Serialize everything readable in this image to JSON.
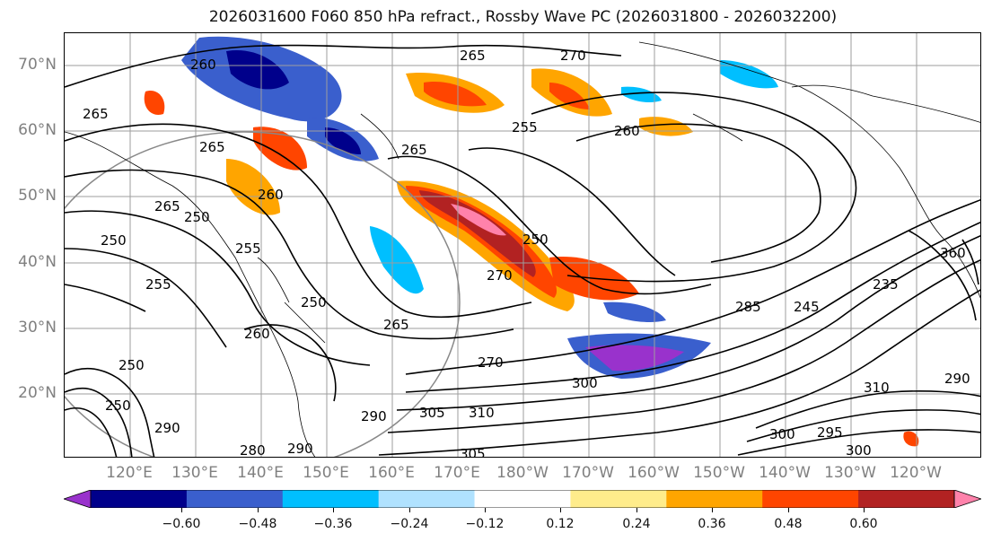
{
  "title": "2026031600 F060 850 hPa refract., Rossby Wave PC (2026031800 - 2026032200)",
  "lat_labels": [
    "70°N",
    "60°N",
    "50°N",
    "40°N",
    "30°N",
    "20°N"
  ],
  "lon_labels": [
    "120°E",
    "130°E",
    "140°E",
    "150°E",
    "160°E",
    "170°E",
    "180°W",
    "170°W",
    "160°W",
    "150°W",
    "140°W",
    "130°W",
    "120°W"
  ],
  "contour_labels": [
    "270",
    "260",
    "265",
    "265",
    "255",
    "260",
    "265",
    "265",
    "265",
    "250",
    "255",
    "260",
    "250",
    "250",
    "255",
    "250",
    "270",
    "265",
    "285",
    "270",
    "245",
    "235",
    "260",
    "290",
    "305",
    "310",
    "290",
    "300",
    "305",
    "280",
    "250",
    "250",
    "295",
    "290",
    "300",
    "300",
    "310",
    "290",
    "360"
  ],
  "colorbar": {
    "ticks": [
      "−0.60",
      "−0.48",
      "−0.36",
      "−0.24",
      "−0.12",
      "0.12",
      "0.24",
      "0.36",
      "0.48",
      "0.60"
    ],
    "colors": [
      "#9932cc",
      "#00008b",
      "#3a5fcd",
      "#00bfff",
      "#b0e2ff",
      "#ffffff",
      "#ffec8b",
      "#ffa500",
      "#ff4500",
      "#b22222",
      "#ff82ab"
    ]
  }
}
